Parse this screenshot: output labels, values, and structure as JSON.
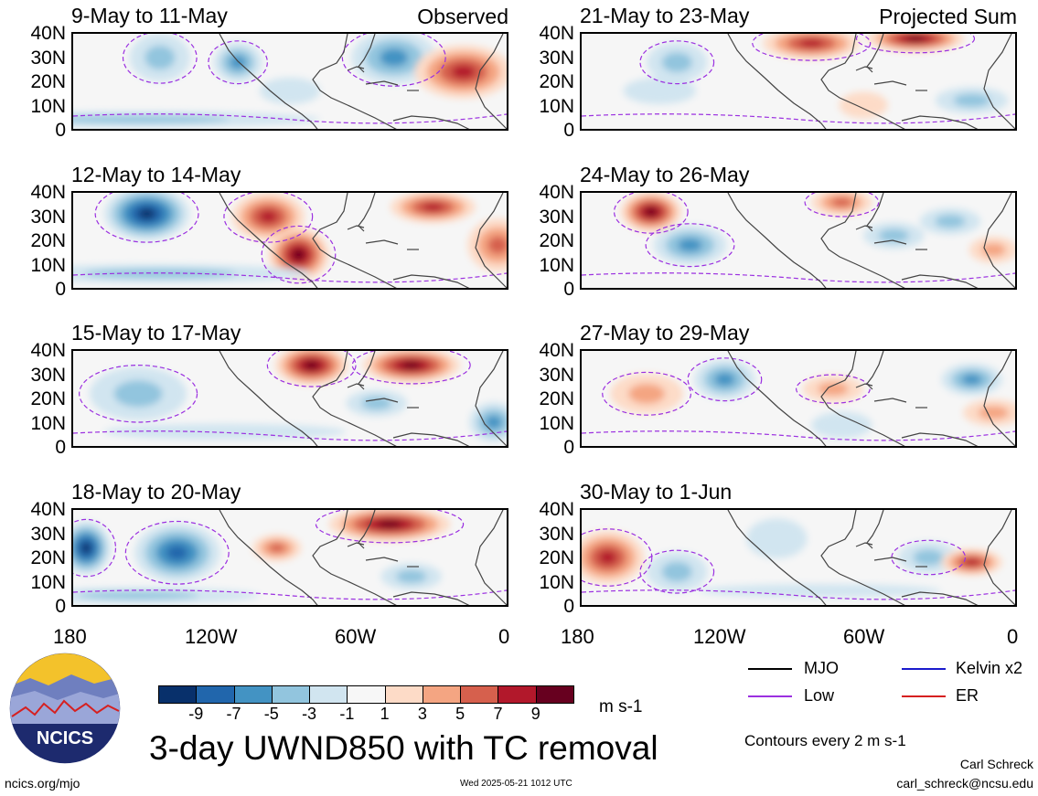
{
  "panels": [
    {
      "col": 0,
      "row": 0,
      "title": "9-May to 11-May",
      "corner": "Observed"
    },
    {
      "col": 0,
      "row": 1,
      "title": "12-May to 14-May",
      "corner": ""
    },
    {
      "col": 0,
      "row": 2,
      "title": "15-May to 17-May",
      "corner": ""
    },
    {
      "col": 0,
      "row": 3,
      "title": "18-May to 20-May",
      "corner": ""
    },
    {
      "col": 1,
      "row": 0,
      "title": "21-May to 23-May",
      "corner": "Projected Sum"
    },
    {
      "col": 1,
      "row": 1,
      "title": "24-May to 26-May",
      "corner": ""
    },
    {
      "col": 1,
      "row": 2,
      "title": "27-May to 29-May",
      "corner": ""
    },
    {
      "col": 1,
      "row": 3,
      "title": "30-May to 1-Jun",
      "corner": ""
    }
  ],
  "lat_labels": [
    "40N",
    "30N",
    "20N",
    "10N",
    "0"
  ],
  "lon_labels": [
    "180",
    "120W",
    "60W",
    "0"
  ],
  "colorbar": {
    "colors": [
      "#08306b",
      "#2166ac",
      "#4393c3",
      "#92c5de",
      "#d1e5f0",
      "#f7f7f7",
      "#fddbc7",
      "#f4a582",
      "#d6604d",
      "#b2182b",
      "#67001f"
    ],
    "ticks": [
      "-9",
      "-7",
      "-5",
      "-3",
      "-1",
      "1",
      "3",
      "5",
      "7",
      "9"
    ],
    "units": "m s-1"
  },
  "legend": [
    {
      "label": "MJO",
      "color": "#000000"
    },
    {
      "label": "Kelvin x2",
      "color": "#1a1acc"
    },
    {
      "label": "Low",
      "color": "#9b30e0"
    },
    {
      "label": "ER",
      "color": "#d62020"
    }
  ],
  "main_title": "3-day UWND850 with TC removal",
  "contour_note": "Contours every 2 m s-1",
  "author": "Carl Schreck",
  "email": "carl_schreck@ncsu.edu",
  "site": "ncics.org/mjo",
  "timestamp": "Wed 2025-05-21 1012 UTC",
  "logo_text": "NCICS",
  "anomaly_features": [
    [
      [
        0.2,
        0.25,
        0.05,
        0.18,
        -4
      ],
      [
        0.38,
        0.3,
        0.04,
        0.15,
        -6
      ],
      [
        0.74,
        0.25,
        0.07,
        0.2,
        -6
      ],
      [
        0.9,
        0.4,
        0.08,
        0.2,
        8
      ],
      [
        0.15,
        0.9,
        0.3,
        0.06,
        -3
      ],
      [
        0.5,
        0.6,
        0.05,
        0.1,
        -2
      ]
    ],
    [
      [
        0.17,
        0.22,
        0.07,
        0.2,
        -9
      ],
      [
        0.45,
        0.25,
        0.06,
        0.18,
        7
      ],
      [
        0.52,
        0.65,
        0.05,
        0.2,
        9
      ],
      [
        0.83,
        0.15,
        0.07,
        0.12,
        7
      ],
      [
        0.2,
        0.85,
        0.25,
        0.07,
        -3
      ],
      [
        0.98,
        0.55,
        0.05,
        0.2,
        5
      ]
    ],
    [
      [
        0.15,
        0.45,
        0.08,
        0.2,
        -4
      ],
      [
        0.55,
        0.15,
        0.06,
        0.15,
        9
      ],
      [
        0.78,
        0.15,
        0.08,
        0.13,
        9
      ],
      [
        0.7,
        0.55,
        0.05,
        0.1,
        -4
      ],
      [
        0.97,
        0.75,
        0.04,
        0.15,
        -6
      ],
      [
        0.35,
        0.85,
        0.2,
        0.06,
        -2
      ]
    ],
    [
      [
        0.03,
        0.4,
        0.04,
        0.2,
        -9
      ],
      [
        0.24,
        0.45,
        0.07,
        0.22,
        -7
      ],
      [
        0.73,
        0.15,
        0.1,
        0.13,
        9
      ],
      [
        0.47,
        0.4,
        0.04,
        0.1,
        5
      ],
      [
        0.78,
        0.7,
        0.05,
        0.1,
        -3
      ],
      [
        0.15,
        0.9,
        0.2,
        0.06,
        -3
      ]
    ],
    [
      [
        0.22,
        0.3,
        0.05,
        0.15,
        -3
      ],
      [
        0.53,
        0.1,
        0.08,
        0.12,
        8
      ],
      [
        0.77,
        0.05,
        0.08,
        0.1,
        9
      ],
      [
        0.9,
        0.7,
        0.06,
        0.1,
        -3
      ],
      [
        0.18,
        0.6,
        0.06,
        0.1,
        -2
      ],
      [
        0.65,
        0.75,
        0.04,
        0.1,
        2
      ]
    ],
    [
      [
        0.16,
        0.2,
        0.05,
        0.15,
        9
      ],
      [
        0.25,
        0.55,
        0.06,
        0.15,
        -5
      ],
      [
        0.6,
        0.1,
        0.05,
        0.1,
        5
      ],
      [
        0.72,
        0.45,
        0.05,
        0.1,
        -4
      ],
      [
        0.85,
        0.3,
        0.05,
        0.1,
        -3
      ],
      [
        0.95,
        0.6,
        0.04,
        0.1,
        3
      ]
    ],
    [
      [
        0.15,
        0.45,
        0.06,
        0.15,
        4
      ],
      [
        0.33,
        0.3,
        0.05,
        0.15,
        -5
      ],
      [
        0.58,
        0.4,
        0.05,
        0.1,
        3
      ],
      [
        0.9,
        0.3,
        0.05,
        0.12,
        -5
      ],
      [
        0.6,
        0.78,
        0.05,
        0.1,
        -2
      ],
      [
        0.95,
        0.65,
        0.05,
        0.1,
        4
      ]
    ],
    [
      [
        0.06,
        0.5,
        0.06,
        0.2,
        8
      ],
      [
        0.22,
        0.65,
        0.05,
        0.15,
        -4
      ],
      [
        0.8,
        0.5,
        0.05,
        0.12,
        -3
      ],
      [
        0.9,
        0.55,
        0.05,
        0.1,
        8
      ],
      [
        0.45,
        0.3,
        0.05,
        0.15,
        -2
      ],
      [
        0.55,
        0.85,
        0.2,
        0.05,
        -1
      ]
    ]
  ]
}
